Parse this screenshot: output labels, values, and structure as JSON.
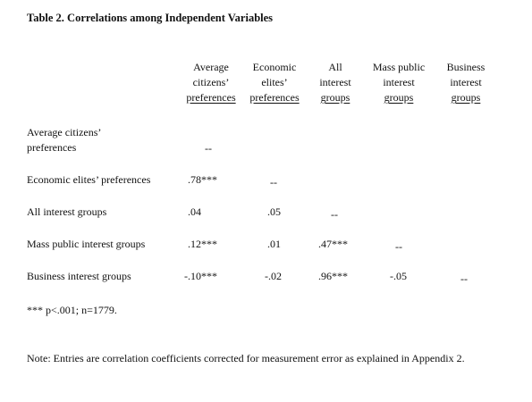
{
  "title": "Table 2.  Correlations among Independent Variables",
  "columns": [
    {
      "line1": "Average",
      "line2": "citizens’",
      "line3": "preferences"
    },
    {
      "line1": "Economic",
      "line2": "elites’",
      "line3": "preferences"
    },
    {
      "line1": "All",
      "line2": "interest",
      "line3": "groups"
    },
    {
      "line1": "Mass public",
      "line2": "interest",
      "line3": "groups"
    },
    {
      "line1": "Business",
      "line2": "interest",
      "line3": "groups"
    }
  ],
  "rows": [
    {
      "label_line1": "Average citizens’",
      "label_line2": "preferences",
      "cells": [
        "--",
        "",
        "",
        "",
        ""
      ]
    },
    {
      "label": "Economic elites’ preferences",
      "cells": [
        ".78***",
        "--",
        "",
        "",
        ""
      ]
    },
    {
      "label": "All interest groups",
      "cells": [
        ".04",
        ".05",
        "--",
        "",
        ""
      ]
    },
    {
      "label": "Mass public interest groups",
      "cells": [
        ".12***",
        ".01",
        ".47***",
        "--",
        ""
      ]
    },
    {
      "label": "Business interest groups",
      "cells": [
        "-.10***",
        "-.02",
        ".96***",
        "-.05",
        "--"
      ]
    }
  ],
  "significance_note": "*** p<.001;  n=1779.",
  "note": "Note: Entries are correlation coefficients corrected for measurement error as explained in Appendix 2."
}
